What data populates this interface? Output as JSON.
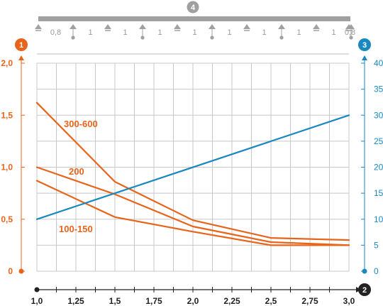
{
  "chart_data": {
    "type": "line",
    "title": "",
    "colors": {
      "left": "#e8641b",
      "right": "#1a88c0",
      "axis": "#222222",
      "grid": "#c8c8c8",
      "beam": "#a0a0a0"
    },
    "badges": [
      "1",
      "2",
      "3",
      "4"
    ],
    "x_axis": {
      "min": 1.0,
      "max": 3.0,
      "ticks": [
        "1,0",
        "1,25",
        "1,5",
        "1,75",
        "2,0",
        "2,25",
        "2,5",
        "2,75",
        "3,0"
      ],
      "grid_step": 0.125
    },
    "y_left": {
      "min": 0,
      "max": 2.0,
      "ticks": [
        "0",
        "0,5",
        "1,0",
        "1,5",
        "2,0"
      ]
    },
    "y_right": {
      "min": 0,
      "max": 40,
      "ticks": [
        "0",
        "5",
        "10",
        "15",
        "20",
        "25",
        "30",
        "35",
        "40"
      ]
    },
    "span_labels": [
      "0,8",
      "1",
      "1",
      "1",
      "1",
      "1",
      "1",
      "1",
      "1",
      "0,8"
    ],
    "series": [
      {
        "name": "300-600",
        "axis": "left",
        "x": [
          1.0,
          1.5,
          2.0,
          2.5,
          3.0
        ],
        "y": [
          1.62,
          0.86,
          0.49,
          0.32,
          0.3
        ]
      },
      {
        "name": "200",
        "axis": "left",
        "x": [
          1.0,
          1.5,
          2.0,
          2.5,
          3.0
        ],
        "y": [
          1.0,
          0.74,
          0.43,
          0.28,
          0.25
        ]
      },
      {
        "name": "100-150",
        "axis": "left",
        "x": [
          1.0,
          1.5,
          2.0,
          2.5,
          3.0
        ],
        "y": [
          0.87,
          0.52,
          0.38,
          0.25,
          0.25
        ]
      },
      {
        "name": "",
        "axis": "right",
        "x": [
          1.0,
          3.0
        ],
        "y": [
          10,
          30
        ]
      }
    ]
  }
}
